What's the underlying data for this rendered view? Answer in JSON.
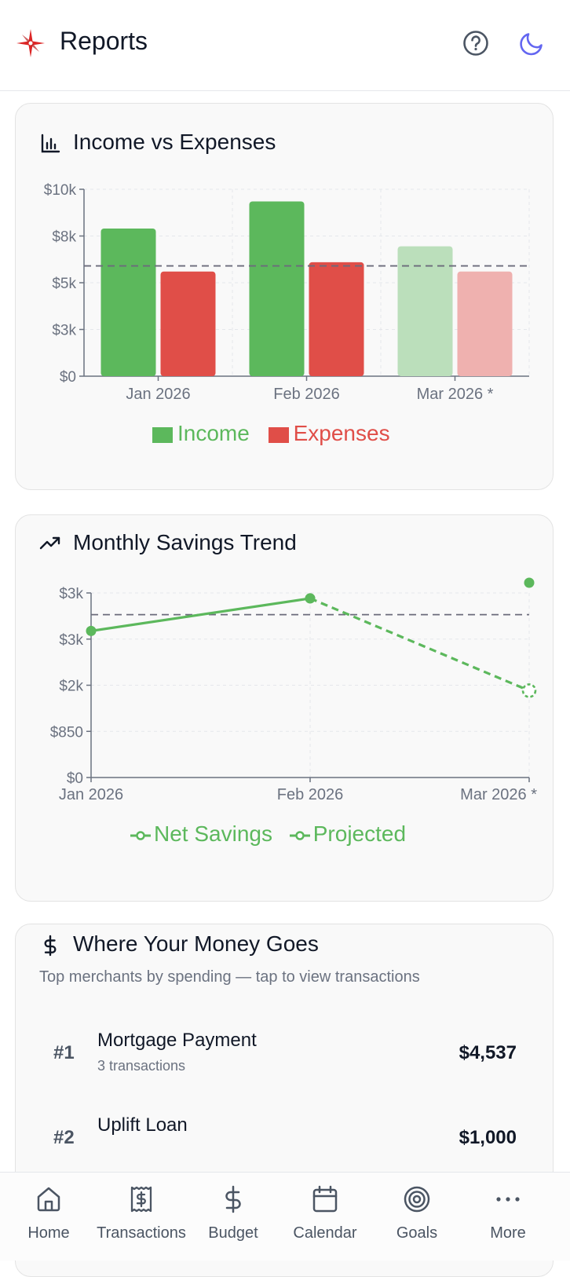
{
  "header": {
    "title": "Reports",
    "logo_icon": "compass-icon",
    "help_icon": "help-circle-icon",
    "theme_icon": "moon-icon",
    "accent": "#dc2626",
    "theme_color": "#6366f1"
  },
  "income_expenses": {
    "title": "Income vs Expenses",
    "icon": "bar-chart-icon",
    "legend": {
      "income": "Income",
      "expenses": "Expenses"
    }
  },
  "savings_trend": {
    "title": "Monthly Savings Trend",
    "icon": "trending-up-icon",
    "legend": {
      "net": "Net Savings",
      "projected": "Projected"
    }
  },
  "merchants": {
    "title": "Where Your Money Goes",
    "icon": "dollar-icon",
    "subtitle": "Top merchants by spending — tap to view transactions",
    "items": [
      {
        "rank": "#1",
        "name": "Mortgage Payment",
        "count": "3 transactions",
        "amount": "$4,537"
      },
      {
        "rank": "#2",
        "name": "Uplift Loan",
        "count": "",
        "amount": "$1,000"
      }
    ]
  },
  "nav": {
    "items": [
      {
        "label": "Home",
        "icon": "home-icon"
      },
      {
        "label": "Transactions",
        "icon": "receipt-icon"
      },
      {
        "label": "Budget",
        "icon": "dollar-icon"
      },
      {
        "label": "Calendar",
        "icon": "calendar-icon"
      },
      {
        "label": "Goals",
        "icon": "target-icon"
      },
      {
        "label": "More",
        "icon": "more-icon"
      }
    ]
  },
  "chart_data": [
    {
      "type": "bar",
      "categories": [
        "Jan 2026",
        "Feb 2026",
        "Mar 2026 *"
      ],
      "series": [
        {
          "name": "Income",
          "values": [
            7900,
            9350,
            6950
          ],
          "color": "#5cb85c",
          "projected_color": "#bbdfbb"
        },
        {
          "name": "Expenses",
          "values": [
            5600,
            6100,
            5600
          ],
          "color": "#e04e48",
          "projected_color": "#efb1af"
        }
      ],
      "y_ticks": [
        "$0",
        "$3k",
        "$5k",
        "$8k",
        "$10k"
      ],
      "ylim": [
        0,
        10000
      ],
      "reference_line": 5900,
      "grid": true,
      "legend_position": "bottom"
    },
    {
      "type": "line",
      "categories": [
        "Jan 2026",
        "Feb 2026",
        "Mar 2026 *"
      ],
      "series": [
        {
          "name": "Net Savings",
          "values": [
            2700,
            3300,
            null
          ],
          "color": "#5cb85c"
        },
        {
          "name": "Projected",
          "values": [
            null,
            3300,
            1600
          ],
          "color": "#5cb85c",
          "dashed": true
        }
      ],
      "y_ticks": [
        "$0",
        "$850",
        "$2k",
        "$3k",
        "$3k"
      ],
      "ylim": [
        0,
        3400
      ],
      "reference_line": 3000,
      "grid": true,
      "legend_position": "bottom"
    }
  ]
}
